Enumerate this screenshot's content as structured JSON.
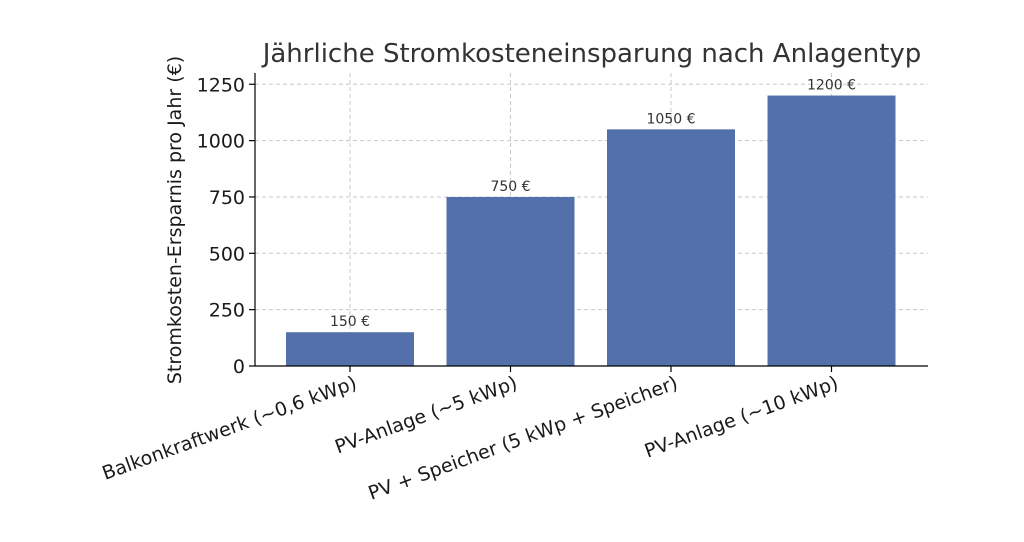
{
  "chart_data": {
    "type": "bar",
    "title": "Jährliche Stromkosteneinsparung nach Anlagentyp",
    "xlabel": "",
    "ylabel": "Stromkosten-Ersparnis pro Jahr (€)",
    "categories": [
      "Balkonkraftwerk (~0,6 kWp)",
      "PV-Anlage (~5 kWp)",
      "PV + Speicher (5 kWp + Speicher)",
      "PV-Anlage (~10 kWp)"
    ],
    "values": [
      150,
      750,
      1050,
      1200
    ],
    "data_labels": [
      "150 €",
      "750 €",
      "1050 €",
      "1200 €"
    ],
    "ylim": [
      0,
      1300
    ],
    "yticks": [
      0,
      250,
      500,
      750,
      1000,
      1250
    ],
    "ytick_labels": [
      "0",
      "250",
      "500",
      "750",
      "1000",
      "1250"
    ],
    "grid": true,
    "bar_color": "#5470aa"
  }
}
